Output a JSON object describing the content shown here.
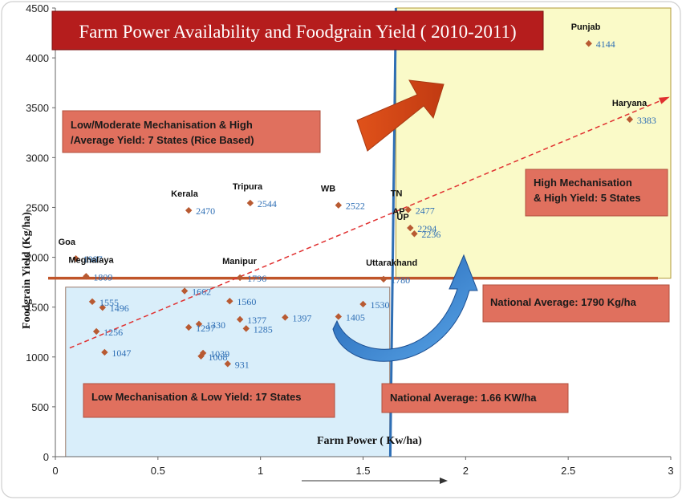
{
  "chart_data": {
    "type": "scatter",
    "title": "Farm Power Availability and Foodgrain Yield ( 2010-2011)",
    "xlabel": "Farm Power ( Kw/ha)",
    "ylabel": "Foodgrain Yield (Kg/ha)",
    "xlim": [
      0,
      3
    ],
    "ylim": [
      0,
      4500
    ],
    "x_ticks": [
      0,
      0.5,
      1,
      1.5,
      2,
      2.5,
      3
    ],
    "x_tick_labels": [
      "0",
      "0.5",
      "1",
      "1.5",
      "2",
      "2.5",
      "3"
    ],
    "y_ticks": [
      0,
      500,
      1000,
      1500,
      2000,
      2500,
      3000,
      3500,
      4000,
      4500
    ],
    "y_tick_labels": [
      "0",
      "500",
      "1000",
      "1500",
      "2000",
      "2500",
      "3000",
      "3500",
      "4000",
      "4500"
    ],
    "grid": false,
    "points": [
      {
        "x": 2.6,
        "y": 4144,
        "label": "4144",
        "state": "Punjab"
      },
      {
        "x": 2.8,
        "y": 3383,
        "label": "3383",
        "state": "Haryana"
      },
      {
        "x": 1.72,
        "y": 2477,
        "label": "2477",
        "state": "TN"
      },
      {
        "x": 1.73,
        "y": 2294,
        "label": "2294",
        "state": "AP"
      },
      {
        "x": 1.75,
        "y": 2236,
        "label": "2236",
        "state": "UP"
      },
      {
        "x": 0.65,
        "y": 2470,
        "label": "2470",
        "state": "Kerala"
      },
      {
        "x": 0.95,
        "y": 2544,
        "label": "2544",
        "state": "Tripura"
      },
      {
        "x": 1.38,
        "y": 2522,
        "label": "2522",
        "state": "WB"
      },
      {
        "x": 0.1,
        "y": 1987,
        "label": "1987",
        "state": "Goa"
      },
      {
        "x": 0.15,
        "y": 1809,
        "label": "1809",
        "state": "Meghalaya"
      },
      {
        "x": 0.9,
        "y": 1796,
        "label": "1796",
        "state": "Manipur"
      },
      {
        "x": 1.6,
        "y": 1780,
        "label": "1780",
        "state": "Uttarakhand"
      },
      {
        "x": 0.63,
        "y": 1662,
        "label": "1662",
        "state": ""
      },
      {
        "x": 0.18,
        "y": 1555,
        "label": "1555",
        "state": ""
      },
      {
        "x": 0.85,
        "y": 1560,
        "label": "1560",
        "state": ""
      },
      {
        "x": 1.5,
        "y": 1530,
        "label": "1530",
        "state": ""
      },
      {
        "x": 0.23,
        "y": 1496,
        "label": "1496",
        "state": ""
      },
      {
        "x": 0.7,
        "y": 1330,
        "label": "1330",
        "state": ""
      },
      {
        "x": 0.9,
        "y": 1377,
        "label": "1377",
        "state": ""
      },
      {
        "x": 1.12,
        "y": 1397,
        "label": "1397",
        "state": ""
      },
      {
        "x": 1.38,
        "y": 1405,
        "label": "1405",
        "state": ""
      },
      {
        "x": 0.93,
        "y": 1285,
        "label": "1285",
        "state": ""
      },
      {
        "x": 0.2,
        "y": 1256,
        "label": "1256",
        "state": ""
      },
      {
        "x": 0.65,
        "y": 1297,
        "label": "1297",
        "state": ""
      },
      {
        "x": 0.72,
        "y": 1039,
        "label": "1039",
        "state": ""
      },
      {
        "x": 0.24,
        "y": 1047,
        "label": "1047",
        "state": ""
      },
      {
        "x": 0.71,
        "y": 1008,
        "label": "1008",
        "state": ""
      },
      {
        "x": 0.84,
        "y": 931,
        "label": "931",
        "state": ""
      }
    ],
    "trendline": {
      "x": [
        0.07,
        3.0
      ],
      "y": [
        1090,
        3600
      ],
      "style": "dashed",
      "color": "#e03030"
    },
    "national_average_yield": {
      "value": 1790,
      "label": "National Average: 1790 Kg/ha"
    },
    "national_average_power": {
      "value": 1.66,
      "label": "National Average: 1.66 KW/ha"
    },
    "annotations": {
      "q_top_left": "Low/Moderate Mechanisation & High /Average Yield: 7 States (Rice Based)",
      "q_top_right": "High Mechanisation & High Yield: 5 States",
      "q_bottom_left": "Low Mechanisation & Low Yield: 17 States"
    },
    "regions": {
      "high_high": {
        "x": [
          1.66,
          3.0
        ],
        "y": [
          1790,
          4500
        ],
        "color": "#fafac8"
      },
      "low_low": {
        "x": [
          0.05,
          1.63
        ],
        "y": [
          0,
          1700
        ],
        "color": "#d9eefa"
      }
    },
    "colors": {
      "marker": "#b85a32",
      "value_text": "#2f6fb5",
      "title_bg": "#b51d1d",
      "box_bg": "#e0705e",
      "axis_line": "#2f6fb5",
      "avg_line": "#c0552a"
    }
  }
}
